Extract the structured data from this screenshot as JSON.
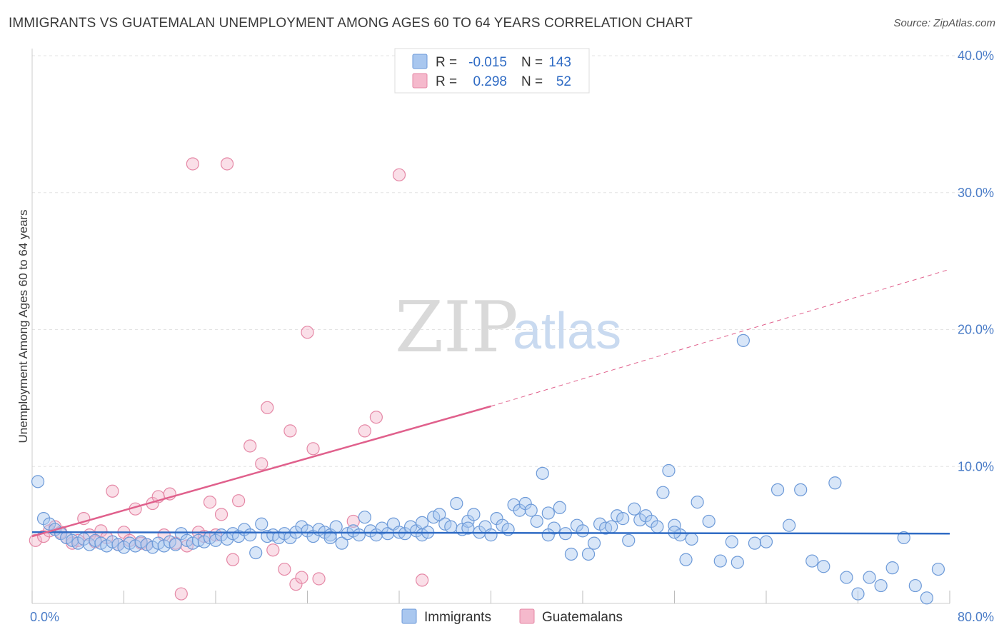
{
  "header": {
    "title": "IMMIGRANTS VS GUATEMALAN UNEMPLOYMENT AMONG AGES 60 TO 64 YEARS CORRELATION CHART",
    "source": "Source: ZipAtlas.com"
  },
  "watermark": {
    "zip": "ZIP",
    "atlas": "atlas"
  },
  "legend": {
    "rows": [
      {
        "r_label": "R =",
        "r_value": "-0.015",
        "n_label": "N =",
        "n_value": "143",
        "color": "#a9c7ef",
        "stroke": "#6d9ad8"
      },
      {
        "r_label": "R =",
        "r_value": "0.298",
        "n_label": "N =",
        "n_value": "52",
        "color": "#f5b9cc",
        "stroke": "#e588a6"
      }
    ]
  },
  "chart_data": {
    "type": "scatter",
    "xlabel": "",
    "ylabel": "Unemployment Among Ages 60 to 64 years",
    "xlim": [
      0,
      80
    ],
    "ylim": [
      0,
      40
    ],
    "x_tick_labels": [
      "0.0%",
      "80.0%"
    ],
    "y_tick_labels": [
      "10.0%",
      "20.0%",
      "30.0%",
      "40.0%"
    ],
    "y_ticks": [
      10,
      20,
      30,
      40
    ],
    "grid": true,
    "legend_position": "top-center",
    "series": [
      {
        "name": "Immigrants",
        "color": "#a9c7ef",
        "stroke": "#6d9ad8",
        "trend": {
          "x": [
            0,
            80
          ],
          "y": [
            5.2,
            5.1
          ],
          "color": "#2f6bc4"
        },
        "points": [
          [
            0.5,
            8.9
          ],
          [
            1,
            6.2
          ],
          [
            1.5,
            5.8
          ],
          [
            2,
            5.4
          ],
          [
            2.5,
            5.1
          ],
          [
            3,
            4.8
          ],
          [
            3.5,
            4.6
          ],
          [
            4,
            4.4
          ],
          [
            4.5,
            4.7
          ],
          [
            5,
            4.3
          ],
          [
            5.5,
            4.6
          ],
          [
            6,
            4.4
          ],
          [
            6.5,
            4.2
          ],
          [
            7,
            4.5
          ],
          [
            7.5,
            4.3
          ],
          [
            8,
            4.1
          ],
          [
            8.5,
            4.4
          ],
          [
            9,
            4.2
          ],
          [
            9.5,
            4.5
          ],
          [
            10,
            4.3
          ],
          [
            10.5,
            4.1
          ],
          [
            11,
            4.4
          ],
          [
            11.5,
            4.2
          ],
          [
            12,
            4.5
          ],
          [
            12.5,
            4.3
          ],
          [
            13,
            5.1
          ],
          [
            13.5,
            4.6
          ],
          [
            14,
            4.4
          ],
          [
            14.5,
            4.6
          ],
          [
            15,
            4.5
          ],
          [
            15.5,
            4.8
          ],
          [
            16,
            4.6
          ],
          [
            16.5,
            5.0
          ],
          [
            17,
            4.7
          ],
          [
            17.5,
            5.1
          ],
          [
            18,
            4.9
          ],
          [
            18.5,
            5.4
          ],
          [
            19,
            5.0
          ],
          [
            19.5,
            3.7
          ],
          [
            20,
            5.8
          ],
          [
            20.5,
            4.9
          ],
          [
            21,
            5.0
          ],
          [
            21.5,
            4.8
          ],
          [
            22,
            5.1
          ],
          [
            22.5,
            4.8
          ],
          [
            23,
            5.2
          ],
          [
            23.5,
            5.6
          ],
          [
            24,
            5.3
          ],
          [
            24.5,
            4.9
          ],
          [
            25,
            5.4
          ],
          [
            25.5,
            5.2
          ],
          [
            26,
            5.0
          ],
          [
            26.5,
            5.6
          ],
          [
            27,
            4.4
          ],
          [
            27.5,
            5.1
          ],
          [
            28,
            5.3
          ],
          [
            28.5,
            5.0
          ],
          [
            29,
            6.3
          ],
          [
            29.5,
            5.3
          ],
          [
            30,
            5.0
          ],
          [
            30.5,
            5.5
          ],
          [
            31,
            5.1
          ],
          [
            31.5,
            5.8
          ],
          [
            32,
            5.2
          ],
          [
            32.5,
            5.1
          ],
          [
            33,
            5.6
          ],
          [
            33.5,
            5.3
          ],
          [
            34,
            5.0
          ],
          [
            34.5,
            5.2
          ],
          [
            35,
            6.3
          ],
          [
            35.5,
            6.5
          ],
          [
            36,
            5.8
          ],
          [
            36.5,
            5.6
          ],
          [
            37,
            7.3
          ],
          [
            37.5,
            5.4
          ],
          [
            38,
            6.0
          ],
          [
            38.5,
            6.5
          ],
          [
            39,
            5.2
          ],
          [
            39.5,
            5.6
          ],
          [
            40,
            5.0
          ],
          [
            40.5,
            6.2
          ],
          [
            41,
            5.7
          ],
          [
            41.5,
            5.4
          ],
          [
            42,
            7.2
          ],
          [
            42.5,
            6.8
          ],
          [
            43,
            7.3
          ],
          [
            43.5,
            6.8
          ],
          [
            44,
            6.0
          ],
          [
            44.5,
            9.5
          ],
          [
            45,
            6.6
          ],
          [
            45.5,
            5.5
          ],
          [
            46,
            7.0
          ],
          [
            46.5,
            5.1
          ],
          [
            47,
            3.6
          ],
          [
            47.5,
            5.7
          ],
          [
            48,
            5.3
          ],
          [
            48.5,
            3.6
          ],
          [
            49,
            4.4
          ],
          [
            49.5,
            5.8
          ],
          [
            50,
            5.5
          ],
          [
            50.5,
            5.6
          ],
          [
            51,
            6.4
          ],
          [
            51.5,
            6.2
          ],
          [
            52,
            4.6
          ],
          [
            52.5,
            6.9
          ],
          [
            53,
            6.1
          ],
          [
            53.5,
            6.4
          ],
          [
            54,
            6.0
          ],
          [
            54.5,
            5.6
          ],
          [
            55,
            8.1
          ],
          [
            55.5,
            9.7
          ],
          [
            56,
            5.7
          ],
          [
            56.5,
            5.0
          ],
          [
            57,
            3.2
          ],
          [
            57.5,
            4.7
          ],
          [
            58,
            7.4
          ],
          [
            59,
            6.0
          ],
          [
            60,
            3.1
          ],
          [
            61,
            4.5
          ],
          [
            61.5,
            3.0
          ],
          [
            62,
            19.2
          ],
          [
            63,
            4.4
          ],
          [
            64,
            4.5
          ],
          [
            65,
            8.3
          ],
          [
            66,
            5.7
          ],
          [
            67,
            8.3
          ],
          [
            68,
            3.1
          ],
          [
            69,
            2.7
          ],
          [
            70,
            8.8
          ],
          [
            71,
            1.9
          ],
          [
            72,
            0.7
          ],
          [
            73,
            1.9
          ],
          [
            74,
            1.3
          ],
          [
            75,
            2.6
          ],
          [
            76,
            4.8
          ],
          [
            77,
            1.3
          ],
          [
            78,
            0.4
          ],
          [
            79,
            2.5
          ],
          [
            45,
            5.0
          ],
          [
            38,
            5.5
          ],
          [
            26,
            4.8
          ],
          [
            34,
            5.9
          ],
          [
            56,
            5.2
          ]
        ]
      },
      {
        "name": "Guatemalans",
        "color": "#f5b9cc",
        "stroke": "#e588a6",
        "trend": {
          "x": [
            0,
            40
          ],
          "y": [
            4.9,
            14.4
          ],
          "color": "#e0608c",
          "dashed_to": [
            80,
            24.4
          ]
        },
        "points": [
          [
            0.3,
            4.6
          ],
          [
            1,
            4.9
          ],
          [
            1.5,
            5.3
          ],
          [
            2,
            5.6
          ],
          [
            2.5,
            5.2
          ],
          [
            3,
            4.8
          ],
          [
            3.5,
            4.4
          ],
          [
            4,
            4.6
          ],
          [
            4.5,
            6.2
          ],
          [
            5,
            5.0
          ],
          [
            5.5,
            4.5
          ],
          [
            6,
            5.3
          ],
          [
            6.5,
            4.8
          ],
          [
            7,
            8.2
          ],
          [
            7.5,
            4.3
          ],
          [
            8,
            5.2
          ],
          [
            8.5,
            4.6
          ],
          [
            9,
            6.9
          ],
          [
            9.5,
            4.4
          ],
          [
            10,
            4.3
          ],
          [
            10.5,
            7.3
          ],
          [
            11,
            7.8
          ],
          [
            11.5,
            5.0
          ],
          [
            12,
            8.0
          ],
          [
            12.5,
            4.4
          ],
          [
            13,
            0.7
          ],
          [
            13.5,
            4.2
          ],
          [
            14,
            32.1
          ],
          [
            14.5,
            5.2
          ],
          [
            15,
            4.9
          ],
          [
            15.5,
            7.4
          ],
          [
            16,
            5.0
          ],
          [
            16.5,
            6.5
          ],
          [
            17,
            32.1
          ],
          [
            17.5,
            3.2
          ],
          [
            18,
            7.5
          ],
          [
            19,
            11.5
          ],
          [
            20,
            10.2
          ],
          [
            20.5,
            14.3
          ],
          [
            21,
            3.9
          ],
          [
            22,
            2.5
          ],
          [
            22.5,
            12.6
          ],
          [
            23,
            1.4
          ],
          [
            23.5,
            1.9
          ],
          [
            24,
            19.8
          ],
          [
            24.5,
            11.3
          ],
          [
            25,
            1.8
          ],
          [
            28,
            6.0
          ],
          [
            29,
            12.6
          ],
          [
            30,
            13.6
          ],
          [
            32,
            31.3
          ],
          [
            34,
            1.7
          ]
        ]
      }
    ]
  }
}
